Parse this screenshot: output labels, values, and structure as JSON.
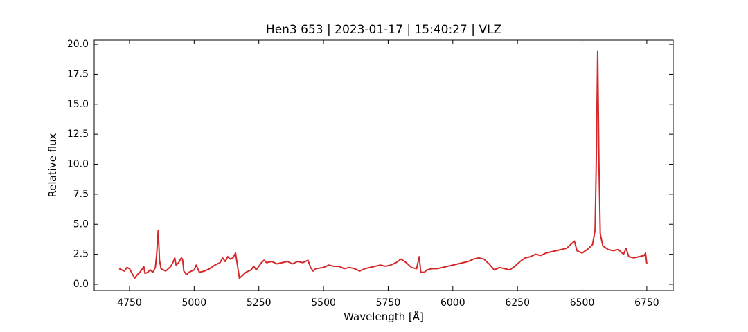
{
  "chart_data": {
    "type": "line",
    "title": "Hen3 653 | 2023-01-17 | 15:40:27 | VLZ",
    "x_label": "Wavelength [Å]",
    "y_label": "Relative flux",
    "x": [
      4710,
      4720,
      4730,
      4740,
      4750,
      4760,
      4770,
      4780,
      4790,
      4800,
      4805,
      4810,
      4820,
      4830,
      4840,
      4850,
      4855,
      4861,
      4866,
      4872,
      4880,
      4890,
      4900,
      4910,
      4920,
      4925,
      4930,
      4940,
      4950,
      4955,
      4960,
      4970,
      4980,
      4990,
      5000,
      5008,
      5020,
      5040,
      5060,
      5080,
      5100,
      5110,
      5120,
      5130,
      5140,
      5150,
      5160,
      5165,
      5175,
      5190,
      5200,
      5220,
      5230,
      5240,
      5250,
      5260,
      5270,
      5280,
      5300,
      5320,
      5340,
      5360,
      5380,
      5400,
      5420,
      5440,
      5450,
      5460,
      5470,
      5500,
      5520,
      5540,
      5560,
      5580,
      5600,
      5620,
      5640,
      5660,
      5680,
      5700,
      5720,
      5740,
      5760,
      5780,
      5800,
      5820,
      5840,
      5860,
      5870,
      5876,
      5890,
      5900,
      5920,
      5940,
      5960,
      5980,
      6000,
      6020,
      6040,
      6060,
      6080,
      6100,
      6120,
      6140,
      6160,
      6180,
      6200,
      6220,
      6240,
      6260,
      6280,
      6300,
      6320,
      6340,
      6360,
      6380,
      6400,
      6420,
      6440,
      6460,
      6470,
      6480,
      6500,
      6520,
      6540,
      6550,
      6556,
      6560,
      6565,
      6570,
      6580,
      6600,
      6620,
      6640,
      6660,
      6670,
      6680,
      6700,
      6720,
      6740,
      6745,
      6750
    ],
    "series": [
      {
        "color": "#d62728",
        "values": [
          1.3,
          1.2,
          1.1,
          1.4,
          1.3,
          0.9,
          0.5,
          0.8,
          1.0,
          1.3,
          1.5,
          0.9,
          1.0,
          1.2,
          1.0,
          1.4,
          2.5,
          4.5,
          2.0,
          1.3,
          1.2,
          1.1,
          1.3,
          1.5,
          1.9,
          2.2,
          1.6,
          1.8,
          2.2,
          2.1,
          1.1,
          0.8,
          1.0,
          1.1,
          1.2,
          1.6,
          1.0,
          1.1,
          1.3,
          1.6,
          1.8,
          2.2,
          1.9,
          2.3,
          2.1,
          2.2,
          2.6,
          1.9,
          0.5,
          0.8,
          1.0,
          1.2,
          1.5,
          1.2,
          1.5,
          1.8,
          2.0,
          1.8,
          1.9,
          1.7,
          1.8,
          1.9,
          1.7,
          1.9,
          1.8,
          2.0,
          1.4,
          1.1,
          1.3,
          1.4,
          1.6,
          1.5,
          1.5,
          1.3,
          1.4,
          1.3,
          1.1,
          1.3,
          1.4,
          1.5,
          1.6,
          1.5,
          1.6,
          1.8,
          2.1,
          1.8,
          1.4,
          1.3,
          2.3,
          1.0,
          1.0,
          1.2,
          1.3,
          1.3,
          1.4,
          1.5,
          1.6,
          1.7,
          1.8,
          1.9,
          2.1,
          2.2,
          2.1,
          1.7,
          1.2,
          1.4,
          1.3,
          1.2,
          1.5,
          1.9,
          2.2,
          2.3,
          2.5,
          2.4,
          2.6,
          2.7,
          2.8,
          2.9,
          3.0,
          3.4,
          3.6,
          2.8,
          2.6,
          2.9,
          3.3,
          4.5,
          12,
          19.4,
          10,
          4.2,
          3.2,
          2.9,
          2.8,
          2.9,
          2.5,
          3.0,
          2.3,
          2.2,
          2.3,
          2.4,
          2.6,
          1.7
        ]
      }
    ],
    "xlim": [
      4613.5,
      6852
    ],
    "ylim": [
      -0.52,
      20.35
    ],
    "xticks": [
      4750,
      5000,
      5250,
      5500,
      5750,
      6000,
      6250,
      6500,
      6750
    ],
    "yticks": [
      {
        "value": 0,
        "label": "0.0"
      },
      2.5,
      {
        "value": 5,
        "label": "5.0"
      },
      7.5,
      {
        "value": 10,
        "label": "10.0"
      },
      12.5,
      {
        "value": 15,
        "label": "15.0"
      },
      17.5,
      {
        "value": 20,
        "label": "20.0"
      }
    ],
    "grid": false
  }
}
